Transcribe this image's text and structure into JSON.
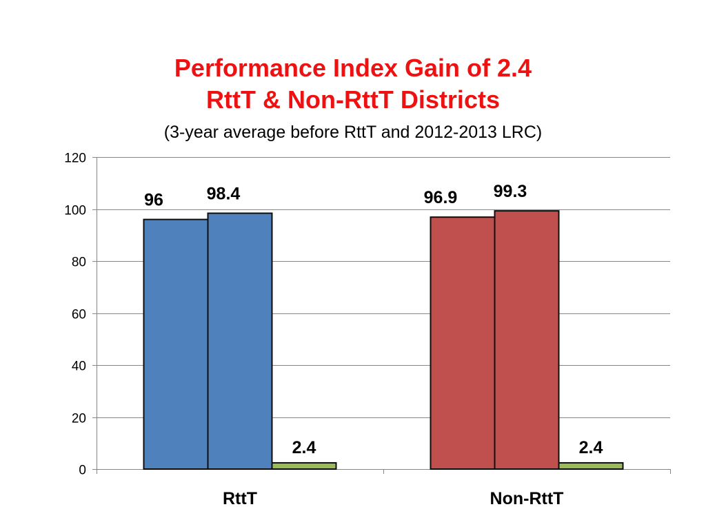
{
  "chart_data": {
    "type": "bar",
    "title_lines": [
      "Performance Index  Gain of 2.4",
      "RttT & Non-RttT Districts"
    ],
    "subtitle": "(3-year average before RttT and 2012-2013 LRC)",
    "categories": [
      "RttT",
      "Non-RttT"
    ],
    "groups": [
      {
        "category": "RttT",
        "values": [
          96,
          98.4,
          2.4
        ],
        "labels": [
          "96",
          "98.4",
          "2.4"
        ],
        "colors": [
          "#4f81bd",
          "#4f81bd",
          "#9bbb59"
        ]
      },
      {
        "category": "Non-RttT",
        "values": [
          96.9,
          99.3,
          2.4
        ],
        "labels": [
          "96.9",
          "99.3",
          "2.4"
        ],
        "colors": [
          "#c0504d",
          "#c0504d",
          "#9bbb59"
        ]
      }
    ],
    "ylim": [
      0,
      120
    ],
    "yticks": [
      0,
      20,
      40,
      60,
      80,
      100,
      120
    ],
    "grid": true,
    "legend": "none"
  }
}
